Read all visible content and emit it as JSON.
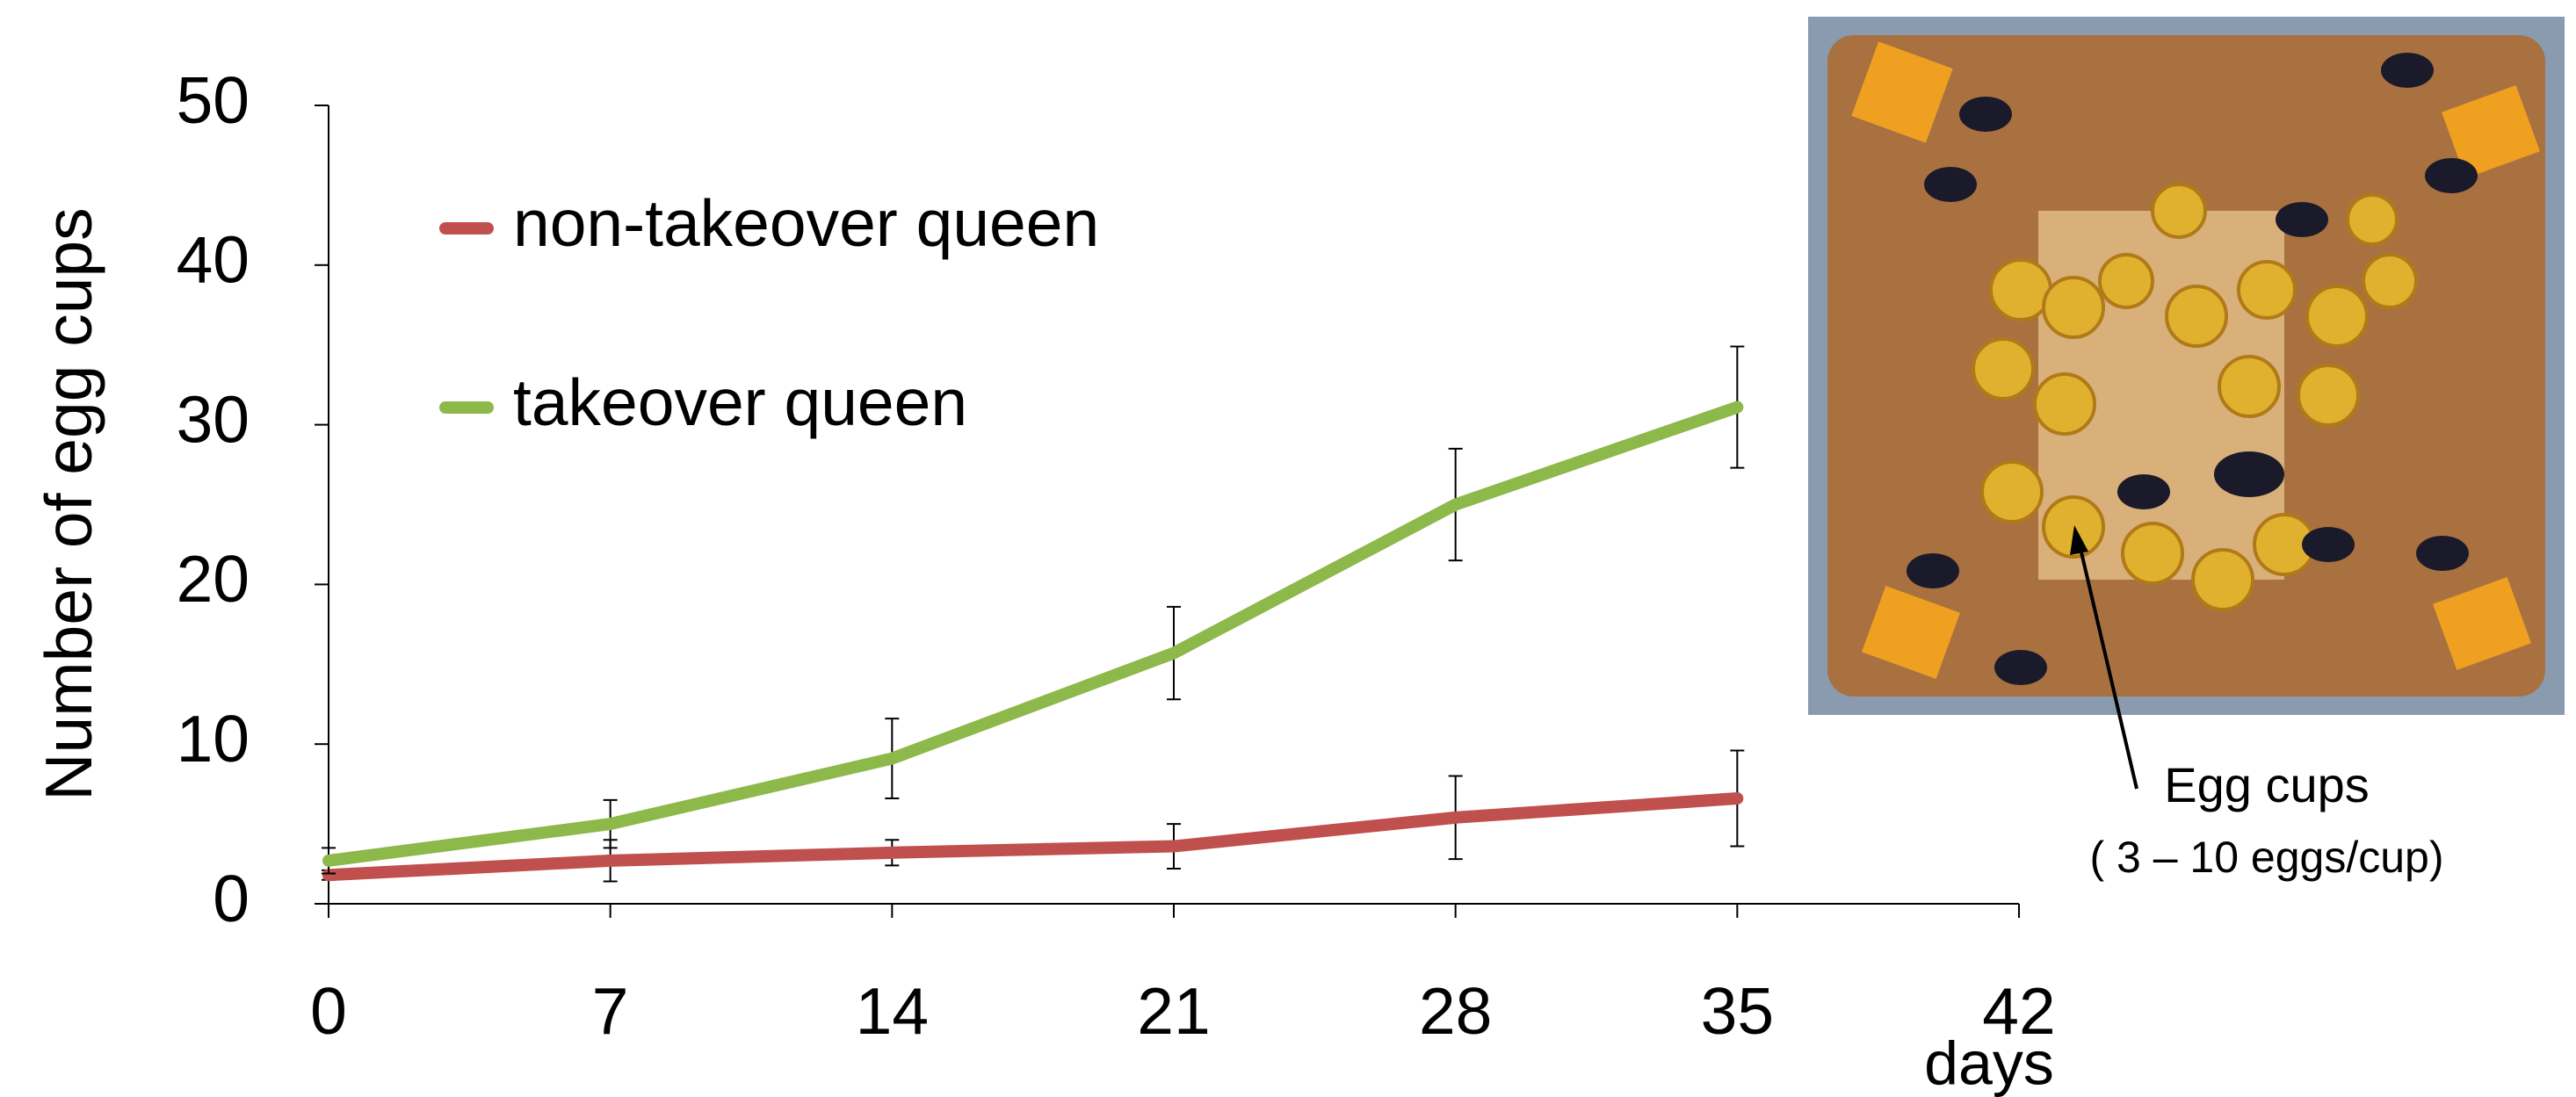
{
  "chart_data": {
    "type": "line",
    "y_label": "Number of egg cups",
    "x_label": "days",
    "x": [
      0,
      7,
      14,
      21,
      28,
      35
    ],
    "series": [
      {
        "name": "non-takeover queen",
        "color": "#c0504d",
        "values": [
          1.8,
          2.7,
          3.2,
          3.6,
          5.4,
          6.6
        ],
        "errors": [
          0.3,
          1.3,
          0.8,
          1.4,
          2.6,
          3.0
        ]
      },
      {
        "name": "takeover queen",
        "color": "#8db84a",
        "values": [
          2.7,
          5.0,
          9.1,
          15.7,
          25.0,
          31.1
        ],
        "errors": [
          0.8,
          1.5,
          2.5,
          2.9,
          3.5,
          3.8
        ]
      }
    ],
    "xlim": [
      0,
      42
    ],
    "xticks": [
      0,
      7,
      14,
      21,
      28,
      35,
      42
    ],
    "ylim": [
      0,
      50
    ],
    "yticks": [
      0,
      10,
      20,
      30,
      40,
      50
    ],
    "grid": false,
    "annotations": [
      "Egg cups",
      "( 3 – 10 eggs/cup)"
    ]
  }
}
